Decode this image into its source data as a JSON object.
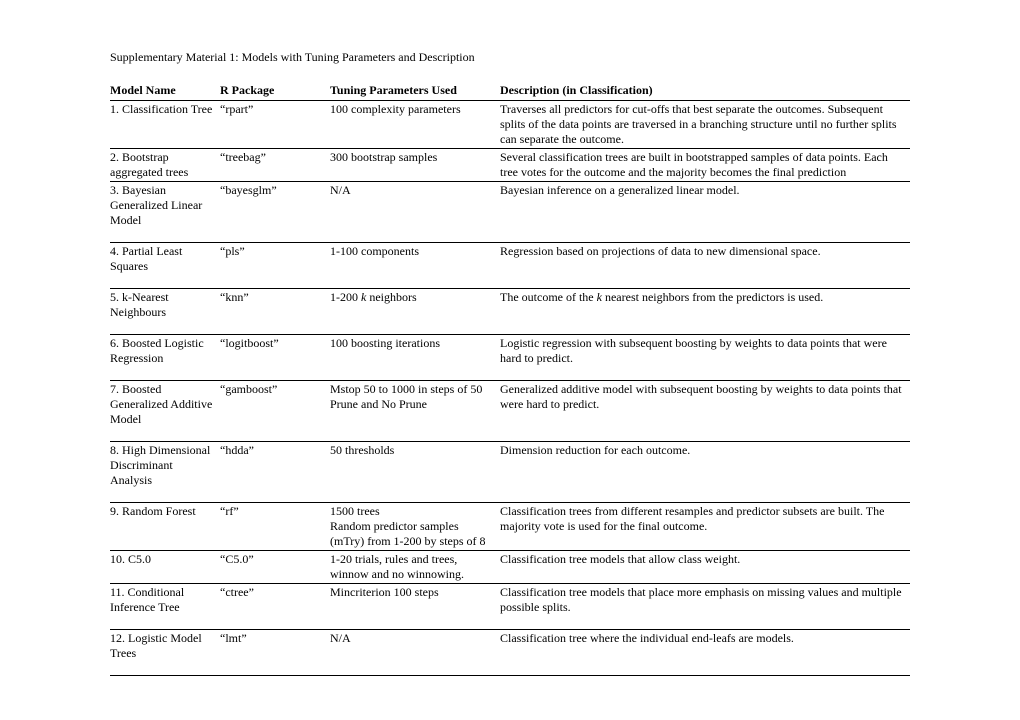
{
  "title": "Supplementary Material 1: Models with Tuning Parameters and Description",
  "headers": {
    "c1": "Model Name",
    "c2": "R Package",
    "c3": "Tuning Parameters Used",
    "c4": "Description (in Classification)"
  },
  "rows": {
    "r1": {
      "name": "1. Classification Tree",
      "pkg": "“rpart”",
      "tune": "100 complexity parameters",
      "desc": "Traverses all predictors for cut-offs that best separate the outcomes. Subsequent splits of the data points are traversed in a branching structure until no further splits can separate the outcome."
    },
    "r2": {
      "name": "2. Bootstrap aggregated trees",
      "pkg": "“treebag”",
      "tune": "300 bootstrap samples",
      "desc": "Several classification trees are built in bootstrapped samples of data points. Each tree votes for the outcome and the majority becomes the final prediction"
    },
    "r3": {
      "name": "3. Bayesian Generalized Linear Model",
      "pkg": "“bayesglm”",
      "tune": "N/A",
      "desc": "Bayesian inference on a generalized linear model."
    },
    "r4": {
      "name": "4. Partial Least Squares",
      "pkg": "“pls”",
      "tune": "1-100 components",
      "desc": "Regression based on projections of data to new dimensional space."
    },
    "r5": {
      "name": "5. k-Nearest Neighbours",
      "pkg": "“knn”",
      "tune_pre": "1-200 ",
      "tune_ital": "k",
      "tune_post": " neighbors",
      "desc_pre": "The outcome of the ",
      "desc_ital": "k",
      "desc_post": " nearest neighbors from the predictors is used."
    },
    "r6": {
      "name": "6. Boosted Logistic Regression",
      "pkg": "“logitboost”",
      "tune": "100 boosting iterations",
      "desc": "Logistic regression with subsequent boosting by weights to data points that were hard to predict."
    },
    "r7": {
      "name": "7. Boosted Generalized Additive Model",
      "pkg": "“gamboost”",
      "tune": "Mstop 50 to 1000 in steps of 50 Prune and No Prune",
      "desc": "Generalized additive model with subsequent boosting by weights to data points that were hard to predict."
    },
    "r8": {
      "name": "8. High Dimensional Discriminant Analysis",
      "pkg": "“hdda”",
      "tune": "50 thresholds",
      "desc": "Dimension reduction for each outcome."
    },
    "r9": {
      "name": "9. Random Forest",
      "pkg": "“rf”",
      "tune": "1500 trees\nRandom predictor samples (mTry) from 1-200 by steps of 8",
      "desc": "Classification trees from different resamples and predictor subsets are built. The majority vote is used for the final outcome."
    },
    "r10": {
      "name": "10. C5.0",
      "pkg": "“C5.0”",
      "tune": "1-20 trials, rules and trees, winnow and no winnowing.",
      "desc": "Classification tree models that allow class weight."
    },
    "r11": {
      "name": "11. Conditional Inference Tree",
      "pkg": "“ctree”",
      "tune": "Mincriterion 100 steps",
      "desc": "Classification tree models that place more emphasis on missing values and multiple possible splits."
    },
    "r12": {
      "name": "12. Logistic Model Trees",
      "pkg": "“lmt”",
      "tune": "N/A",
      "desc": "Classification tree where the individual end-leafs are models."
    }
  }
}
